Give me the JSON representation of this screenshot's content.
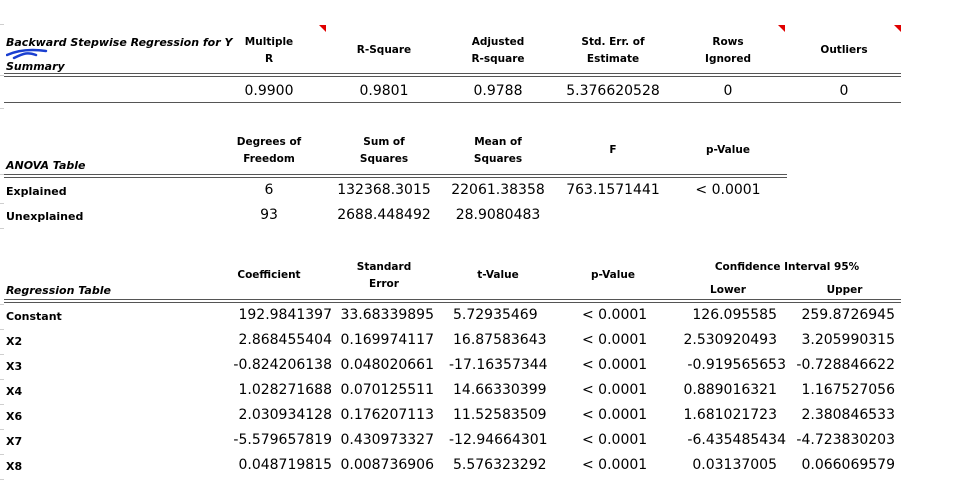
{
  "summary": {
    "title": "Backward Stepwise Regression for Y",
    "subtitle": "Summary",
    "headers": [
      [
        "Multiple",
        "R"
      ],
      [
        "R-Square"
      ],
      [
        "Adjusted",
        "R-square"
      ],
      [
        "Std. Err. of",
        "Estimate"
      ],
      [
        "Rows",
        "Ignored"
      ],
      [
        "Outliers"
      ]
    ],
    "values": [
      "0.9900",
      "0.9801",
      "0.9788",
      "5.376620528",
      "0",
      "0"
    ]
  },
  "anova": {
    "title": "ANOVA Table",
    "headers": [
      [
        "Degrees of",
        "Freedom"
      ],
      [
        "Sum of",
        "Squares"
      ],
      [
        "Mean of",
        "Squares"
      ],
      [
        "F"
      ],
      [
        "p-Value"
      ]
    ],
    "rows": [
      {
        "label": "Explained",
        "df": "6",
        "ss": "132368.3015",
        "ms": "22061.38358",
        "f": "763.1571441",
        "p": "< 0.0001"
      },
      {
        "label": "Unexplained",
        "df": "93",
        "ss": "2688.448492",
        "ms": "28.9080483",
        "f": "",
        "p": ""
      }
    ]
  },
  "regression": {
    "title": "Regression Table",
    "headers": {
      "coef": "Coefficient",
      "se": [
        "Standard",
        "Error"
      ],
      "t": "t-Value",
      "p": "p-Value",
      "ci": "Confidence Interval 95%",
      "lower": "Lower",
      "upper": "Upper"
    },
    "rows": [
      {
        "label": "Constant",
        "coef": "192.9841397",
        "se": "33.68339895",
        "t": "5.72935469",
        "p": "< 0.0001",
        "lower": "126.095585",
        "upper": "259.8726945"
      },
      {
        "label": "X2",
        "coef": "2.868455404",
        "se": "0.169974117",
        "t": "16.87583643",
        "p": "< 0.0001",
        "lower": "2.530920493",
        "upper": "3.205990315"
      },
      {
        "label": "X3",
        "coef": "-0.824206138",
        "se": "0.048020661",
        "t": "-17.16357344",
        "p": "< 0.0001",
        "lower": "-0.919565653",
        "upper": "-0.728846622"
      },
      {
        "label": "X4",
        "coef": "1.028271688",
        "se": "0.070125511",
        "t": "14.66330399",
        "p": "< 0.0001",
        "lower": "0.889016321",
        "upper": "1.167527056"
      },
      {
        "label": "X6",
        "coef": "2.030934128",
        "se": "0.176207113",
        "t": "11.52583509",
        "p": "< 0.0001",
        "lower": "1.681021723",
        "upper": "2.380846533"
      },
      {
        "label": "X7",
        "coef": "-5.579657819",
        "se": "0.430973327",
        "t": "-12.94664301",
        "p": "< 0.0001",
        "lower": "-6.435485434",
        "upper": "-4.723830203"
      },
      {
        "label": "X8",
        "coef": "0.048719815",
        "se": "0.008736906",
        "t": "5.576323292",
        "p": "< 0.0001",
        "lower": "0.03137005",
        "upper": "0.066069579"
      }
    ]
  },
  "colors": {
    "comment_marker": "#e00000",
    "rule": "#555555",
    "doodle": "#1a3fd0"
  }
}
